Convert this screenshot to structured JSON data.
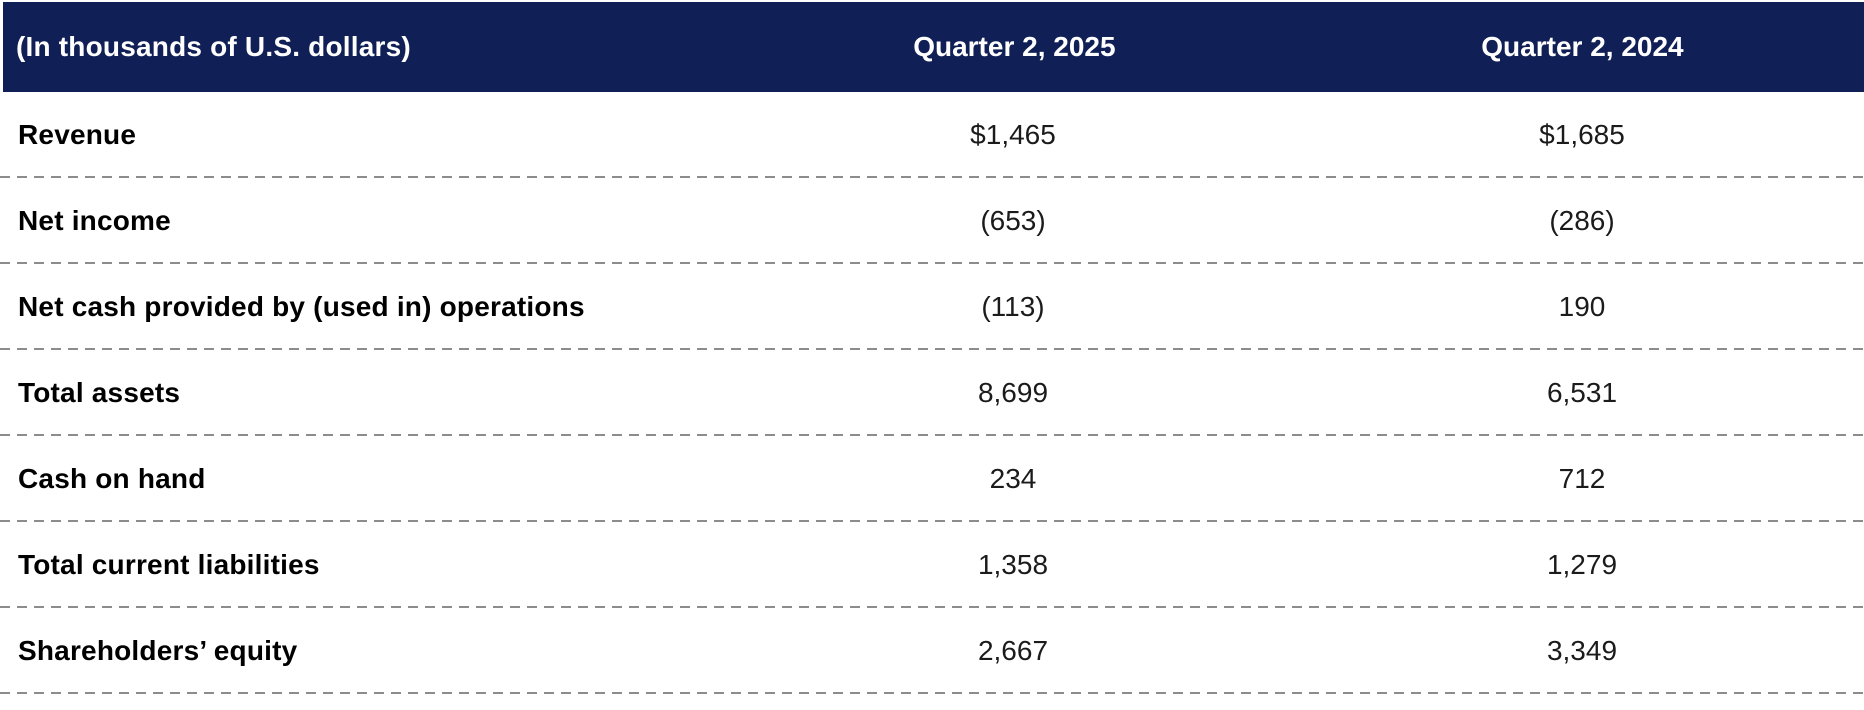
{
  "table": {
    "header": {
      "label_column": "(In thousands of U.S. dollars)",
      "columns": [
        "Quarter 2, 2025",
        "Quarter 2, 2024"
      ]
    },
    "rows": [
      {
        "label": "Revenue",
        "q2_2025": "$1,465",
        "q2_2024": "$1,685"
      },
      {
        "label": "Net income",
        "q2_2025": "(653)",
        "q2_2024": "(286)"
      },
      {
        "label": "Net cash provided by (used in) operations",
        "q2_2025": "(113)",
        "q2_2024": "190"
      },
      {
        "label": "Total assets",
        "q2_2025": "8,699",
        "q2_2024": "6,531"
      },
      {
        "label": "Cash on hand",
        "q2_2025": "234",
        "q2_2024": "712"
      },
      {
        "label": "Total current liabilities",
        "q2_2025": "1,358",
        "q2_2024": "1,279"
      },
      {
        "label": "Shareholders’ equity",
        "q2_2025": "2,667",
        "q2_2024": "3,349"
      }
    ],
    "colors": {
      "header_bg": "#101f56",
      "header_text": "#ffffff",
      "row_label": "#000000",
      "row_value": "#1b1b1b",
      "divider": "#8c8c8c"
    }
  }
}
